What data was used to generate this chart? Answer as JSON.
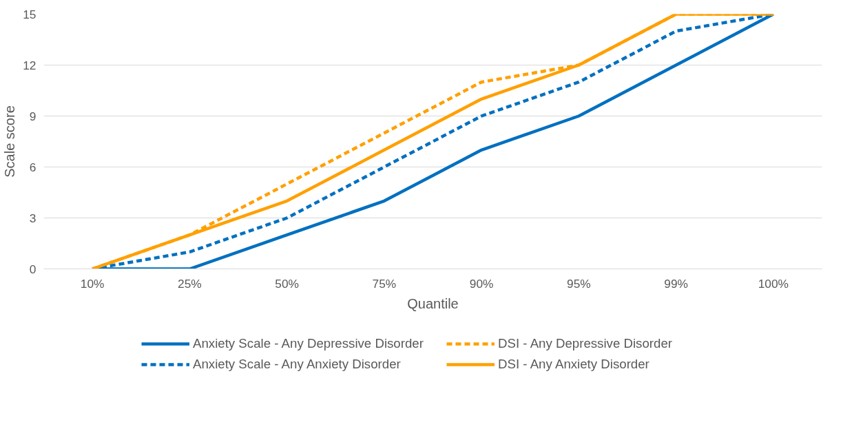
{
  "chart_data": {
    "type": "line",
    "xlabel": "Quantile",
    "ylabel": "Scale score",
    "categories": [
      "10%",
      "25%",
      "50%",
      "75%",
      "90%",
      "95%",
      "99%",
      "100%"
    ],
    "ylim": [
      0,
      15
    ],
    "yticks": [
      0,
      3,
      6,
      9,
      12,
      15
    ],
    "grid": "y",
    "legend": "bottom",
    "series": [
      {
        "name": "Anxiety Scale - Any Depressive Disorder",
        "color": "#0070c0",
        "line_style": "solid",
        "values": [
          0,
          0,
          2,
          4,
          7,
          9,
          12,
          15
        ]
      },
      {
        "name": "DSI - Any Depressive Disorder",
        "color": "#ffa000",
        "line_style": "dashed",
        "values": [
          0,
          2,
          5,
          8,
          11,
          12,
          15,
          15
        ]
      },
      {
        "name": "Anxiety Scale - Any Anxiety Disorder",
        "color": "#0070c0",
        "line_style": "dashed",
        "values": [
          0,
          1,
          3,
          6,
          9,
          11,
          14,
          15
        ]
      },
      {
        "name": "DSI - Any Anxiety Disorder",
        "color": "#ffa000",
        "line_style": "solid",
        "values": [
          0,
          2,
          4,
          7,
          10,
          12,
          15,
          15
        ]
      }
    ]
  }
}
